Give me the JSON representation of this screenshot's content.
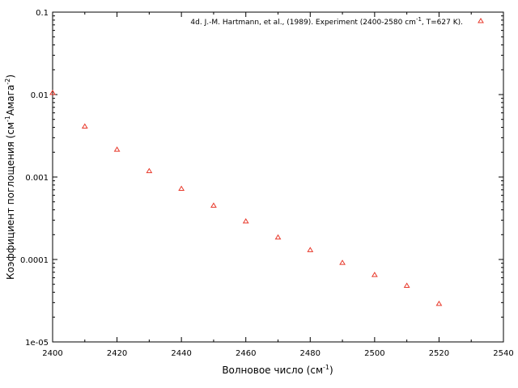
{
  "chart_data": {
    "type": "scatter",
    "xlabel": "Волновое число (см",
    "xlabel_sup": "-1",
    "xlabel_tail": ")",
    "ylabel_pre": "Коэффициент поглощения (см",
    "ylabel_sup1": "-1",
    "ylabel_mid": "Амага",
    "ylabel_sup2": "-2",
    "ylabel_tail": ")",
    "xlim": [
      2400,
      2540
    ],
    "ylim": [
      1e-05,
      0.1
    ],
    "yscale": "log",
    "x_ticks": [
      "2400",
      "2420",
      "2440",
      "2460",
      "2480",
      "2500",
      "2520",
      "2540"
    ],
    "y_ticks": [
      "1e-05",
      "0.0001",
      "0.001",
      "0.01",
      "0.1"
    ],
    "grid": false,
    "legend_position": "top-right",
    "legend": {
      "pre": "4d. J.-M. Hartmann, et al., (1989). Experiment (2400-2580 cm",
      "sup": "-1",
      "post": ", T=627 K)."
    },
    "series": [
      {
        "color": "#e8392b",
        "marker": "triangle",
        "x": [
          2400,
          2410,
          2420,
          2430,
          2440,
          2450,
          2460,
          2470,
          2480,
          2490,
          2500,
          2510,
          2520
        ],
        "y": [
          0.0105,
          0.0041,
          0.00215,
          0.00118,
          0.00072,
          0.00045,
          0.00029,
          0.000185,
          0.00013,
          9.1e-05,
          6.5e-05,
          4.8e-05,
          2.9e-05
        ]
      }
    ]
  }
}
